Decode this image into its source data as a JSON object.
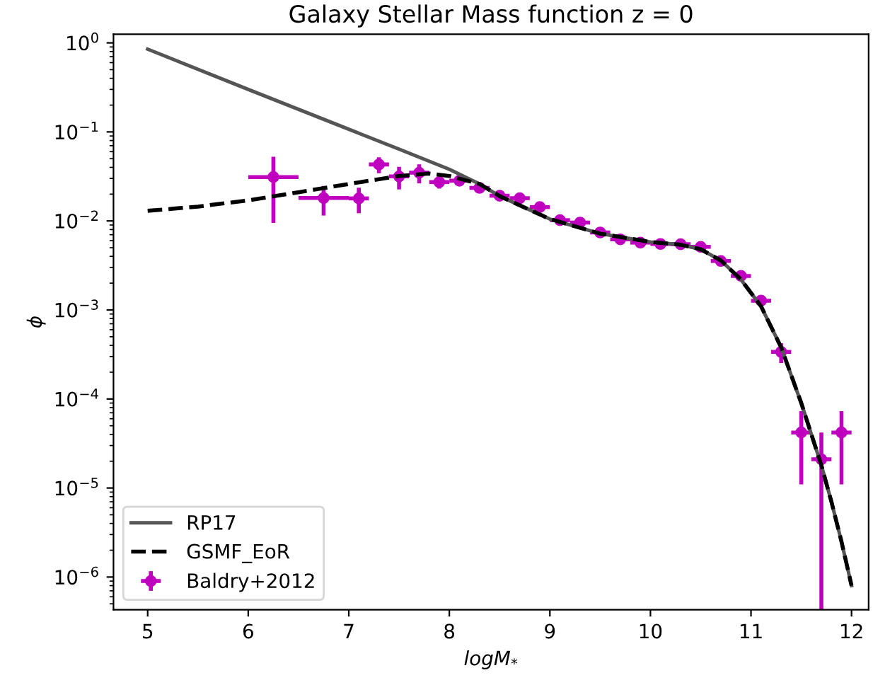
{
  "chart_data": {
    "type": "line",
    "title": "Galaxy Stellar Mass function z = 0",
    "xlabel": "logM$_{*}$",
    "ylabel": "ϕ",
    "log": "y",
    "xlim": [
      4.66,
      12.17
    ],
    "ylim": [
      4.3e-07,
      1.25
    ],
    "xticks": [
      5,
      6,
      7,
      8,
      9,
      10,
      11,
      12
    ],
    "yticks": [
      {
        "value": 1e-06,
        "label": "10$^{−6}$"
      },
      {
        "value": 1e-05,
        "label": "10$^{−5}$"
      },
      {
        "value": 0.0001,
        "label": "10$^{−4}$"
      },
      {
        "value": 0.001,
        "label": "10$^{−3}$"
      },
      {
        "value": 0.01,
        "label": "10$^{−2}$"
      },
      {
        "value": 0.1,
        "label": "10$^{−1}$"
      },
      {
        "value": 1,
        "label": "10$^{0}$"
      }
    ],
    "grid": false,
    "legend": "bottom left",
    "series": [
      {
        "name": "RP17",
        "color": "#555555",
        "line_style": "solid",
        "marker": "none",
        "x": [
          5,
          6,
          7,
          7.5,
          8,
          8.3,
          8.5,
          9.0,
          9.5,
          10.0,
          10.3,
          10.5,
          10.7,
          10.9,
          11.1,
          11.3,
          11.5,
          11.7,
          11.8,
          11.9,
          12.0
        ],
        "values": [
          0.85,
          0.3,
          0.107,
          0.064,
          0.038,
          0.026,
          0.019,
          0.0105,
          0.0072,
          0.0058,
          0.0054,
          0.0048,
          0.0036,
          0.0022,
          0.0011,
          0.00038,
          9e-05,
          1.8e-05,
          7e-06,
          2.5e-06,
          8e-07
        ]
      },
      {
        "name": "GSMF_EoR",
        "color": "#000000",
        "line_style": "dashed",
        "marker": "none",
        "x": [
          5,
          5.5,
          6,
          6.5,
          7,
          7.5,
          7.8,
          8.0,
          8.3,
          8.5,
          9.0,
          9.5,
          10.0,
          10.3,
          10.5,
          10.7,
          10.9,
          11.1,
          11.3,
          11.5,
          11.7,
          11.8,
          11.9,
          12.0
        ],
        "values": [
          0.013,
          0.0145,
          0.017,
          0.021,
          0.026,
          0.032,
          0.034,
          0.032,
          0.026,
          0.019,
          0.0105,
          0.0072,
          0.0058,
          0.0054,
          0.0048,
          0.0036,
          0.0022,
          0.0011,
          0.00038,
          9e-05,
          1.8e-05,
          7e-06,
          2.5e-06,
          8e-07
        ]
      },
      {
        "name": "Baldry+2012",
        "type": "scatter",
        "color": "#bf00bf",
        "marker": "circle",
        "x": [
          6.25,
          6.75,
          7.1,
          7.3,
          7.5,
          7.7,
          7.9,
          8.1,
          8.3,
          8.5,
          8.7,
          8.9,
          9.1,
          9.3,
          9.5,
          9.7,
          9.9,
          10.1,
          10.3,
          10.5,
          10.7,
          10.9,
          11.1,
          11.3,
          11.5,
          11.7,
          11.9
        ],
        "values": [
          0.0311,
          0.0181,
          0.0179,
          0.0431,
          0.0316,
          0.0348,
          0.0273,
          0.0283,
          0.0235,
          0.0192,
          0.018,
          0.0143,
          0.0102,
          0.00959,
          0.00742,
          0.00621,
          0.00571,
          0.00551,
          0.00548,
          0.00512,
          0.00355,
          0.00241,
          0.00127,
          0.000338,
          4.2e-05,
          2.1e-05,
          4.2e-05
        ],
        "errors": [
          0.0216,
          0.0066,
          0.0057,
          0.0087,
          0.009,
          0.0084,
          0.0042,
          0.0028,
          0.003,
          0.0012,
          0.0026,
          0.0017,
          0.0006,
          0.00055,
          0.00041,
          0.00037,
          0.00035,
          0.00034,
          0.00034,
          0.00033,
          0.00027,
          0.00023,
          0.00016,
          8.5e-05,
          3.1e-05,
          [
            4.3e-07,
            4.2e-05
          ],
          3.1e-05
        ],
        "xerrors": [
          0.25,
          0.25,
          0.1,
          0.1,
          0.1,
          0.1,
          0.1,
          0.1,
          0.1,
          0.1,
          0.1,
          0.1,
          0.1,
          0.1,
          0.1,
          0.1,
          0.1,
          0.1,
          0.1,
          0.1,
          0.1,
          0.1,
          0.1,
          0.1,
          0.1,
          0.1,
          0.1
        ]
      }
    ]
  }
}
